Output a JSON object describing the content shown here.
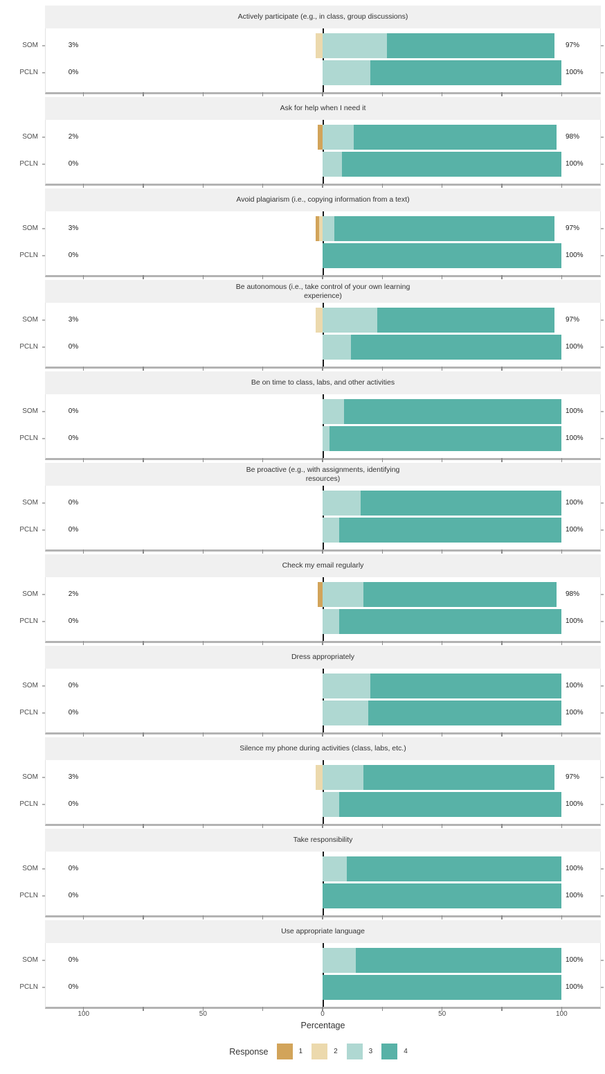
{
  "chart_data": {
    "type": "bar",
    "variant": "diverging-stacked-likert",
    "xlabel": "Percentage",
    "x_ticks": [
      "100",
      "50",
      "0",
      "50",
      "100"
    ],
    "x_tick_values": [
      -100,
      -50,
      0,
      50,
      100
    ],
    "x_minor_tick_values": [
      -100,
      -75,
      -50,
      -25,
      0,
      25,
      50,
      75,
      100
    ],
    "xlim": [
      -116,
      116
    ],
    "grid": false,
    "legend": {
      "title": "Response",
      "position": "bottom",
      "items": [
        {
          "label": "1",
          "color": "#d2a45a"
        },
        {
          "label": "2",
          "color": "#ecd9ad"
        },
        {
          "label": "3",
          "color": "#afd8d2"
        },
        {
          "label": "4",
          "color": "#58b2a7"
        }
      ]
    },
    "groups": [
      "SOM",
      "PCLN"
    ],
    "panels": [
      {
        "title": "Actively participate (e.g., in class, group discussions)",
        "rows": [
          {
            "group": "SOM",
            "neg_label": "3%",
            "pos_label": "97%",
            "segments": {
              "1": 0,
              "2": 3,
              "3": 27,
              "4": 70
            }
          },
          {
            "group": "PCLN",
            "neg_label": "0%",
            "pos_label": "100%",
            "segments": {
              "1": 0,
              "2": 0,
              "3": 20,
              "4": 80
            }
          }
        ]
      },
      {
        "title": "Ask for help when I need it",
        "rows": [
          {
            "group": "SOM",
            "neg_label": "2%",
            "pos_label": "98%",
            "segments": {
              "1": 2,
              "2": 0,
              "3": 13,
              "4": 85
            }
          },
          {
            "group": "PCLN",
            "neg_label": "0%",
            "pos_label": "100%",
            "segments": {
              "1": 0,
              "2": 0,
              "3": 8,
              "4": 92
            }
          }
        ]
      },
      {
        "title": "Avoid plagiarism (i.e., copying information from a text)",
        "rows": [
          {
            "group": "SOM",
            "neg_label": "3%",
            "pos_label": "97%",
            "segments": {
              "1": 1.5,
              "2": 1.5,
              "3": 5,
              "4": 92
            }
          },
          {
            "group": "PCLN",
            "neg_label": "0%",
            "pos_label": "100%",
            "segments": {
              "1": 0,
              "2": 0,
              "3": 0,
              "4": 100
            }
          }
        ]
      },
      {
        "title": "Be autonomous (i.e., take control of your own learning experience)",
        "rows": [
          {
            "group": "SOM",
            "neg_label": "3%",
            "pos_label": "97%",
            "segments": {
              "1": 0,
              "2": 3,
              "3": 23,
              "4": 74
            }
          },
          {
            "group": "PCLN",
            "neg_label": "0%",
            "pos_label": "100%",
            "segments": {
              "1": 0,
              "2": 0,
              "3": 12,
              "4": 88
            }
          }
        ]
      },
      {
        "title": "Be on time to class, labs, and other activities",
        "rows": [
          {
            "group": "SOM",
            "neg_label": "0%",
            "pos_label": "100%",
            "segments": {
              "1": 0,
              "2": 0,
              "3": 9,
              "4": 91
            }
          },
          {
            "group": "PCLN",
            "neg_label": "0%",
            "pos_label": "100%",
            "segments": {
              "1": 0,
              "2": 0,
              "3": 3,
              "4": 97
            }
          }
        ]
      },
      {
        "title": "Be proactive (e.g., with assignments, identifying resources)",
        "rows": [
          {
            "group": "SOM",
            "neg_label": "0%",
            "pos_label": "100%",
            "segments": {
              "1": 0,
              "2": 0,
              "3": 16,
              "4": 84
            }
          },
          {
            "group": "PCLN",
            "neg_label": "0%",
            "pos_label": "100%",
            "segments": {
              "1": 0,
              "2": 0,
              "3": 7,
              "4": 93
            }
          }
        ]
      },
      {
        "title": "Check my email regularly",
        "rows": [
          {
            "group": "SOM",
            "neg_label": "2%",
            "pos_label": "98%",
            "segments": {
              "1": 2,
              "2": 0,
              "3": 17,
              "4": 81
            }
          },
          {
            "group": "PCLN",
            "neg_label": "0%",
            "pos_label": "100%",
            "segments": {
              "1": 0,
              "2": 0,
              "3": 7,
              "4": 93
            }
          }
        ]
      },
      {
        "title": "Dress appropriately",
        "rows": [
          {
            "group": "SOM",
            "neg_label": "0%",
            "pos_label": "100%",
            "segments": {
              "1": 0,
              "2": 0,
              "3": 20,
              "4": 80
            }
          },
          {
            "group": "PCLN",
            "neg_label": "0%",
            "pos_label": "100%",
            "segments": {
              "1": 0,
              "2": 0,
              "3": 19,
              "4": 81
            }
          }
        ]
      },
      {
        "title": "Silence my phone during activities (class, labs, etc.)",
        "rows": [
          {
            "group": "SOM",
            "neg_label": "3%",
            "pos_label": "97%",
            "segments": {
              "1": 0,
              "2": 3,
              "3": 17,
              "4": 80
            }
          },
          {
            "group": "PCLN",
            "neg_label": "0%",
            "pos_label": "100%",
            "segments": {
              "1": 0,
              "2": 0,
              "3": 7,
              "4": 93
            }
          }
        ]
      },
      {
        "title": "Take responsibility",
        "rows": [
          {
            "group": "SOM",
            "neg_label": "0%",
            "pos_label": "100%",
            "segments": {
              "1": 0,
              "2": 0,
              "3": 10,
              "4": 90
            }
          },
          {
            "group": "PCLN",
            "neg_label": "0%",
            "pos_label": "100%",
            "segments": {
              "1": 0,
              "2": 0,
              "3": 0,
              "4": 100
            }
          }
        ]
      },
      {
        "title": "Use appropriate language",
        "rows": [
          {
            "group": "SOM",
            "neg_label": "0%",
            "pos_label": "100%",
            "segments": {
              "1": 0,
              "2": 0,
              "3": 14,
              "4": 86
            }
          },
          {
            "group": "PCLN",
            "neg_label": "0%",
            "pos_label": "100%",
            "segments": {
              "1": 0,
              "2": 0,
              "3": 0,
              "4": 100
            }
          }
        ]
      }
    ]
  },
  "colors": {
    "response_1": "#d2a45a",
    "response_2": "#ecd9ad",
    "response_3": "#afd8d2",
    "response_4": "#58b2a7",
    "strip_background": "#f0f0f0",
    "panel_border": "#e2e2e2",
    "axis_line": "#b3b3b3",
    "zero_line": "#1a1a1a",
    "text_dark": "#333333",
    "text_axis": "#4d4d4d"
  }
}
